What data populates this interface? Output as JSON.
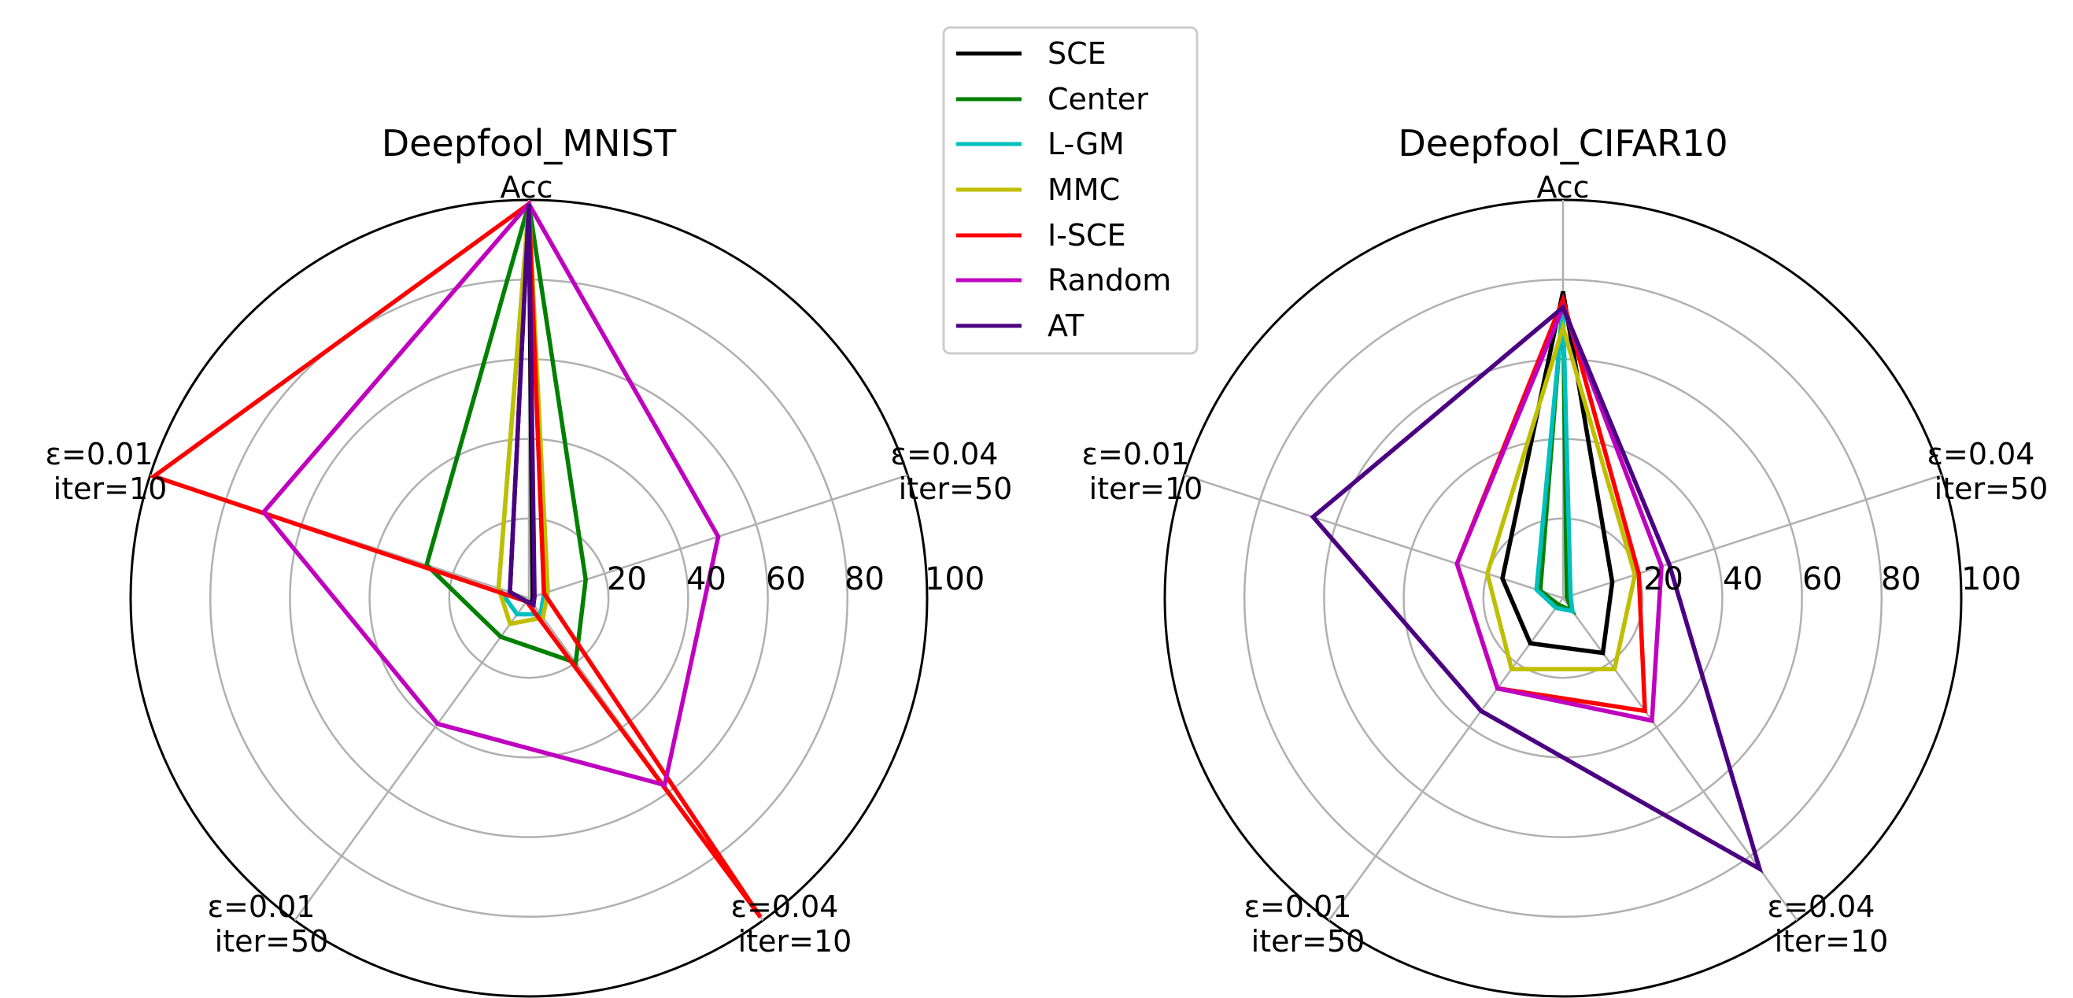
{
  "legend": {
    "entries": [
      {
        "name": "SCE",
        "color": "#000000"
      },
      {
        "name": "Center",
        "color": "#008000"
      },
      {
        "name": "L-GM",
        "color": "#00bfbf"
      },
      {
        "name": "MMC",
        "color": "#bfbf00"
      },
      {
        "name": "I-SCE",
        "color": "#ff0000"
      },
      {
        "name": "Random",
        "color": "#bf00bf"
      },
      {
        "name": "AT",
        "color": "#4b0082"
      }
    ]
  },
  "chart_data": [
    {
      "type": "radar",
      "title": "Deepfool_MNIST",
      "axes": [
        {
          "line1": "Acc",
          "line2": ""
        },
        {
          "line1": "ε=0.04",
          "line2": "iter=50"
        },
        {
          "line1": "ε=0.04",
          "line2": "iter=10"
        },
        {
          "line1": "ε=0.01",
          "line2": "iter=50"
        },
        {
          "line1": "ε=0.01",
          "line2": "iter=10"
        }
      ],
      "rlim": [
        0,
        100
      ],
      "rticks": [
        20,
        40,
        60,
        80,
        100
      ],
      "series": [
        {
          "name": "SCE",
          "values": [
            99.0,
            1.0,
            1.5,
            1.0,
            5.0
          ]
        },
        {
          "name": "Center",
          "values": [
            99.0,
            15.0,
            20.0,
            12.0,
            27.0
          ]
        },
        {
          "name": "L-GM",
          "values": [
            99.0,
            4.0,
            5.0,
            5.0,
            8.0
          ]
        },
        {
          "name": "MMC",
          "values": [
            99.0,
            5.0,
            6.0,
            8.0,
            8.0
          ]
        },
        {
          "name": "I-SCE",
          "values": [
            99.0,
            4.0,
            99.0,
            1.0,
            99.0
          ]
        },
        {
          "name": "Random",
          "values": [
            99.0,
            50.0,
            58.0,
            39.0,
            70.0
          ]
        },
        {
          "name": "AT",
          "values": [
            99.0,
            1.5,
            2.0,
            1.0,
            5.0
          ]
        }
      ]
    },
    {
      "type": "radar",
      "title": "Deepfool_CIFAR10",
      "axes": [
        {
          "line1": "Acc",
          "line2": ""
        },
        {
          "line1": "ε=0.04",
          "line2": "iter=50"
        },
        {
          "line1": "ε=0.04",
          "line2": "iter=10"
        },
        {
          "line1": "ε=0.01",
          "line2": "iter=50"
        },
        {
          "line1": "ε=0.01",
          "line2": "iter=10"
        }
      ],
      "rlim": [
        0,
        100
      ],
      "rticks": [
        20,
        40,
        60,
        80,
        100
      ],
      "series": [
        {
          "name": "SCE",
          "values": [
            77.0,
            13.0,
            17.0,
            14.0,
            16.0
          ]
        },
        {
          "name": "Center",
          "values": [
            75.0,
            1.0,
            4.0,
            2.0,
            6.0
          ]
        },
        {
          "name": "L-GM",
          "values": [
            73.0,
            2.0,
            4.0,
            3.0,
            7.0
          ]
        },
        {
          "name": "MMC",
          "values": [
            68.0,
            19.0,
            22.0,
            22.0,
            20.0
          ]
        },
        {
          "name": "I-SCE",
          "values": [
            75.0,
            20.0,
            35.0,
            28.0,
            28.0
          ]
        },
        {
          "name": "Random",
          "values": [
            73.0,
            26.0,
            38.0,
            28.0,
            28.0
          ]
        },
        {
          "name": "AT",
          "values": [
            73.0,
            28.0,
            84.0,
            35.0,
            66.0
          ]
        }
      ]
    }
  ]
}
